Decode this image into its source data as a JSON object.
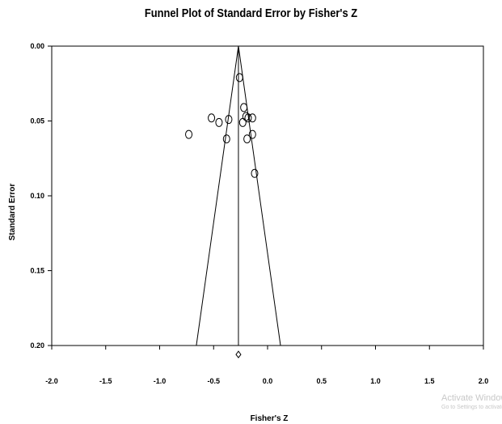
{
  "chart_data": {
    "type": "scatter",
    "title": "Funnel Plot of Standard Error by Fisher's Z",
    "xlabel": "Fisher's Z",
    "ylabel": "Standard Error",
    "xlim": [
      -2.0,
      2.0
    ],
    "ylim": [
      0.0,
      0.2
    ],
    "y_inverted": true,
    "x_ticks": [
      "-2.0",
      "-1.5",
      "-1.0",
      "-0.5",
      "0.0",
      "0.5",
      "1.0",
      "1.5",
      "2.0"
    ],
    "y_ticks": [
      "0.00",
      "0.05",
      "0.10",
      "0.15",
      "0.20"
    ],
    "grid": false,
    "summary_effect": -0.27,
    "funnel_bottom": [
      -0.66,
      0.12
    ],
    "studies": [
      {
        "x": -0.26,
        "y": 0.021
      },
      {
        "x": -0.22,
        "y": 0.041
      },
      {
        "x": -0.52,
        "y": 0.048
      },
      {
        "x": -0.45,
        "y": 0.051
      },
      {
        "x": -0.36,
        "y": 0.049
      },
      {
        "x": -0.23,
        "y": 0.051
      },
      {
        "x": -0.2,
        "y": 0.047
      },
      {
        "x": -0.18,
        "y": 0.048
      },
      {
        "x": -0.14,
        "y": 0.048
      },
      {
        "x": -0.73,
        "y": 0.059
      },
      {
        "x": -0.38,
        "y": 0.062
      },
      {
        "x": -0.19,
        "y": 0.062
      },
      {
        "x": -0.14,
        "y": 0.059
      },
      {
        "x": -0.12,
        "y": 0.085
      }
    ],
    "summary_diamond": {
      "x": -0.27,
      "y": 0.206
    }
  },
  "watermark": {
    "line1": "Activate Windows",
    "line2": "Go to Settings to activate Windows."
  }
}
